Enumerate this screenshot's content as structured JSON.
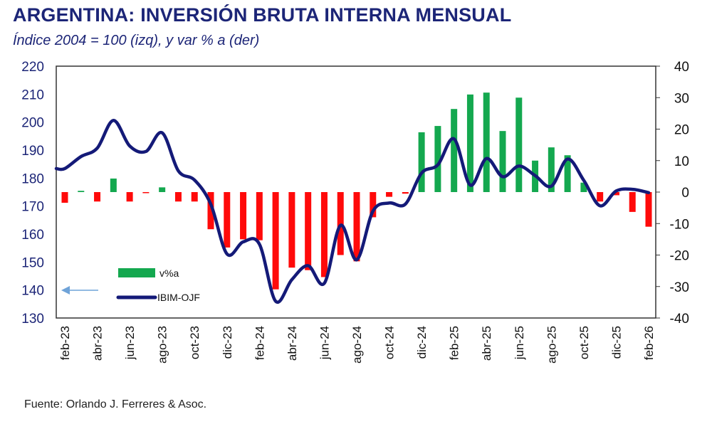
{
  "chart_data": {
    "type": "bar+line",
    "title": "ARGENTINA: INVERSIÓN BRUTA INTERNA MENSUAL",
    "subtitle": "Índice 2004 = 100 (izq), y var % a (der)",
    "source": "Fuente: Orlando J. Ferreres & Asoc.",
    "categories": [
      "feb-23",
      "mar-23",
      "abr-23",
      "may-23",
      "jun-23",
      "jul-23",
      "ago-23",
      "sep-23",
      "oct-23",
      "nov-23",
      "dic-23",
      "ene-24",
      "feb-24",
      "mar-24",
      "abr-24",
      "may-24",
      "jun-24",
      "jul-24",
      "ago-24",
      "sep-24",
      "oct-24",
      "nov-24",
      "dic-24",
      "ene-25",
      "feb-25",
      "mar-25",
      "abr-25",
      "may-25",
      "jun-25",
      "jul-25",
      "ago-25",
      "sep-25",
      "oct-25",
      "nov-25",
      "dic-25",
      "ene-26",
      "feb-26"
    ],
    "x_tick_labels": [
      "feb-23",
      "abr-23",
      "jun-23",
      "ago-23",
      "oct-23",
      "dic-23",
      "feb-24",
      "abr-24",
      "jun-24",
      "ago-24",
      "oct-24",
      "dic-24",
      "feb-25",
      "abr-25",
      "jun-25",
      "ago-25",
      "oct-25",
      "dic-25",
      "feb-26"
    ],
    "series": [
      {
        "name": "v%a",
        "type": "bar",
        "axis": "right",
        "values": [
          -3.4,
          0.4,
          -3,
          4.3,
          -3,
          -0.3,
          1.5,
          -3,
          -3,
          -11.8,
          -17.6,
          -15,
          -15.3,
          -30.9,
          -24,
          -24.8,
          -27,
          -20,
          -22,
          -8,
          -1.5,
          -0.5,
          19,
          21,
          26.4,
          31,
          31.6,
          19.4,
          30,
          10,
          14.2,
          11.7,
          3,
          -3,
          -1,
          -6.3,
          -11
        ]
      },
      {
        "name": "IBIM-OJF",
        "type": "line",
        "axis": "left",
        "values": [
          183.4,
          187.7,
          190.7,
          200.6,
          191.5,
          189.5,
          196.2,
          182.6,
          179.3,
          170.7,
          152.9,
          157.2,
          156.4,
          136,
          143.7,
          148.7,
          142.4,
          163.1,
          150.8,
          168.2,
          171.1,
          170.7,
          181.8,
          184.7,
          194,
          177.5,
          187,
          180.5,
          184.3,
          180.9,
          177.1,
          186.8,
          179.2,
          170.1,
          175.4,
          176,
          174.8
        ]
      }
    ],
    "left_axis": {
      "range": [
        130,
        220
      ],
      "ticks": [
        "130",
        "140",
        "150",
        "160",
        "170",
        "180",
        "190",
        "200",
        "210",
        "220"
      ]
    },
    "right_axis": {
      "range": [
        -40,
        40
      ],
      "ticks": [
        "-40",
        "-30",
        "-20",
        "-10",
        "0",
        "10",
        "20",
        "30",
        "40"
      ]
    },
    "colors": {
      "positive_bar": "#14a84f",
      "negative_bar": "#ff0a0a",
      "line": "#141a78",
      "arrow": "#6fa3d8",
      "left_ticks": "#1c2577"
    },
    "legend": {
      "placement": "bottom-left",
      "arrow": "left-pointing arrow indicating line uses left axis"
    },
    "grid": false
  }
}
